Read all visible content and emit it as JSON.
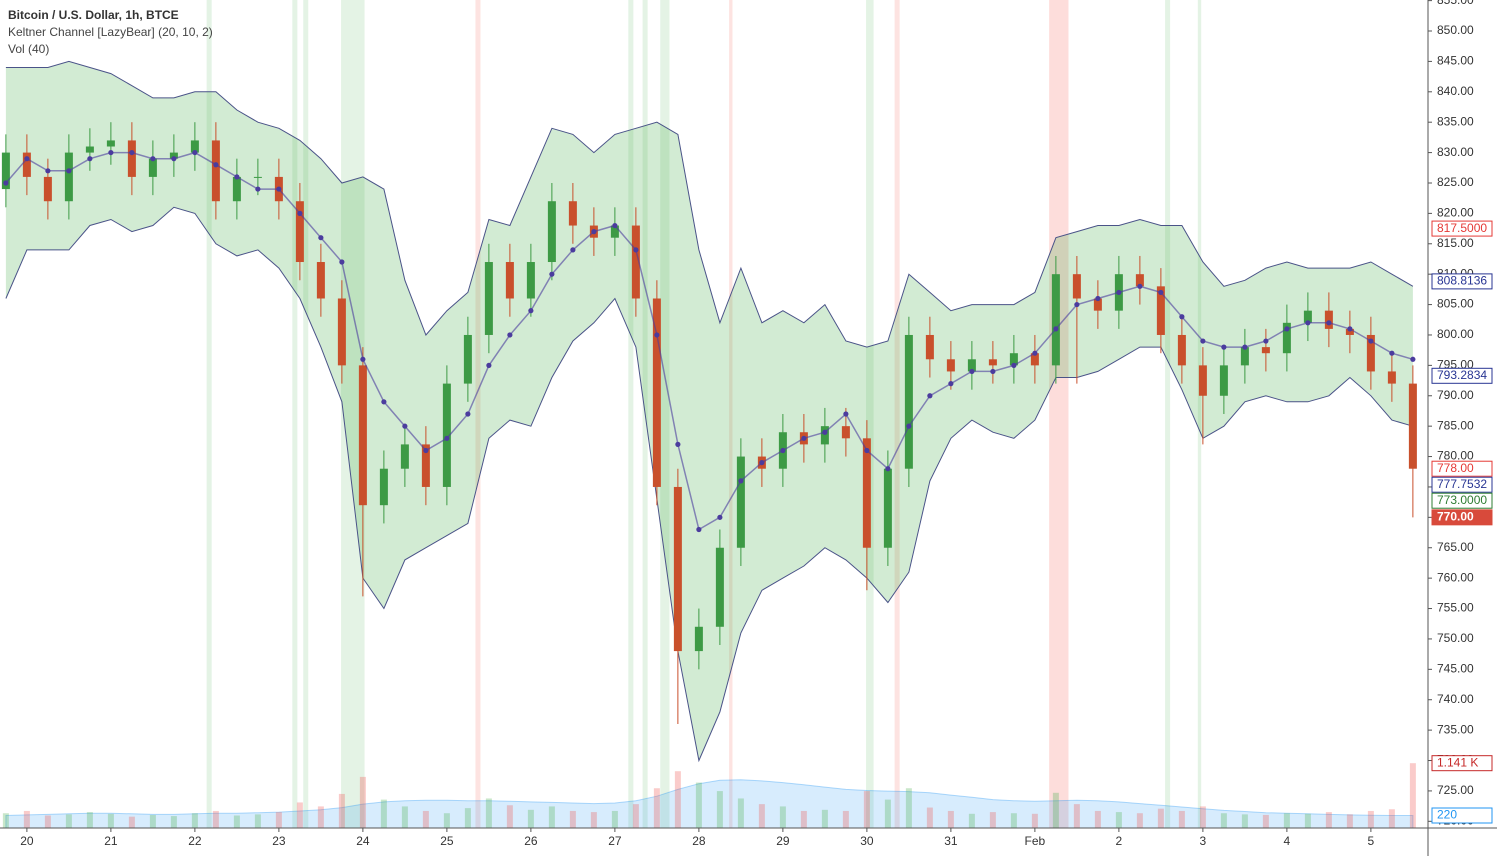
{
  "chart_data": {
    "type": "candlestick",
    "title": "Bitcoin / U.S. Dollar, 1h, BTCE",
    "indicators": [
      "Keltner Channel [LazyBear] (20, 10, 2)",
      "Vol (40)"
    ],
    "x": [
      -0.25,
      0,
      0.25,
      0.5,
      0.75,
      1,
      1.25,
      1.5,
      1.75,
      2,
      2.25,
      2.5,
      2.75,
      3,
      3.25,
      3.5,
      3.75,
      4,
      4.25,
      4.5,
      4.75,
      5,
      5.25,
      5.5,
      5.75,
      6,
      6.25,
      6.5,
      6.75,
      7,
      7.25,
      7.5,
      7.75,
      8,
      8.25,
      8.5,
      8.75,
      9,
      9.25,
      9.5,
      9.75,
      10,
      10.25,
      10.5,
      10.75,
      11,
      11.25,
      11.5,
      11.75,
      12,
      12.25,
      12.5,
      12.75,
      13,
      13.25,
      13.5,
      13.75,
      14,
      14.25,
      14.5,
      14.75,
      15,
      15.25,
      15.5,
      15.75,
      16,
      16.25,
      16.5
    ],
    "xlim": [
      -0.32,
      16.68
    ],
    "xticks": [
      {
        "value": 0,
        "label": "20"
      },
      {
        "value": 1,
        "label": "21"
      },
      {
        "value": 2,
        "label": "22"
      },
      {
        "value": 3,
        "label": "23"
      },
      {
        "value": 4,
        "label": "24"
      },
      {
        "value": 5,
        "label": "25"
      },
      {
        "value": 6,
        "label": "26"
      },
      {
        "value": 7,
        "label": "27"
      },
      {
        "value": 8,
        "label": "28"
      },
      {
        "value": 9,
        "label": "29"
      },
      {
        "value": 10,
        "label": "30"
      },
      {
        "value": 11,
        "label": "31"
      },
      {
        "value": 12,
        "label": "Feb"
      },
      {
        "value": 13,
        "label": "2"
      },
      {
        "value": 14,
        "label": "3"
      },
      {
        "value": 15,
        "label": "4"
      },
      {
        "value": 16,
        "label": "5"
      }
    ],
    "ylim": [
      718.9,
      855.1
    ],
    "yticks": [
      {
        "value": 720,
        "label": "720.00"
      },
      {
        "value": 725,
        "label": "725.00"
      },
      {
        "value": 730,
        "label": "730.00"
      },
      {
        "value": 735,
        "label": "735.00"
      },
      {
        "value": 740,
        "label": "740.00"
      },
      {
        "value": 745,
        "label": "745.00"
      },
      {
        "value": 750,
        "label": "750.00"
      },
      {
        "value": 755,
        "label": "755.00"
      },
      {
        "value": 760,
        "label": "760.00"
      },
      {
        "value": 765,
        "label": "765.00"
      },
      {
        "value": 770,
        "label": "770.00"
      },
      {
        "value": 775,
        "label": "775.00"
      },
      {
        "value": 780,
        "label": "780.00"
      },
      {
        "value": 785,
        "label": "785.00"
      },
      {
        "value": 790,
        "label": "790.00"
      },
      {
        "value": 795,
        "label": "795.00"
      },
      {
        "value": 800,
        "label": "800.00"
      },
      {
        "value": 805,
        "label": "805.00"
      },
      {
        "value": 810,
        "label": "810.00"
      },
      {
        "value": 815,
        "label": "815.00"
      },
      {
        "value": 820,
        "label": "820.00"
      },
      {
        "value": 825,
        "label": "825.00"
      },
      {
        "value": 830,
        "label": "830.00"
      },
      {
        "value": 835,
        "label": "835.00"
      },
      {
        "value": 840,
        "label": "840.00"
      },
      {
        "value": 845,
        "label": "845.00"
      },
      {
        "value": 850,
        "label": "850.00"
      },
      {
        "value": 855,
        "label": "855.00"
      }
    ],
    "grid": false,
    "up_color": "#3d9a45",
    "down_color": "#c9502c",
    "open": [
      824,
      830,
      826,
      822,
      830,
      831,
      832,
      826,
      829,
      830,
      832,
      822,
      826,
      826,
      822,
      812,
      806,
      795,
      772,
      778,
      782,
      775,
      792,
      800,
      812,
      806,
      812,
      822,
      818,
      816,
      818,
      806,
      775,
      748,
      752,
      765,
      780,
      778,
      784,
      782,
      785,
      783,
      765,
      778,
      800,
      796,
      794,
      796,
      795,
      797,
      795,
      810,
      806,
      804,
      810,
      808,
      800,
      795,
      790,
      795,
      798,
      797,
      802,
      804,
      801,
      800,
      794,
      792
    ],
    "high": [
      833,
      833,
      829,
      833,
      834,
      835,
      835,
      832,
      833,
      835,
      835,
      829,
      829,
      829,
      825,
      815,
      809,
      798,
      781,
      785,
      785,
      795,
      803,
      815,
      815,
      815,
      825,
      825,
      821,
      821,
      821,
      809,
      778,
      755,
      768,
      783,
      783,
      787,
      787,
      788,
      788,
      786,
      781,
      803,
      803,
      799,
      799,
      799,
      800,
      800,
      813,
      813,
      809,
      813,
      813,
      811,
      803,
      798,
      798,
      801,
      801,
      805,
      807,
      807,
      804,
      803,
      797,
      795
    ],
    "low": [
      821,
      823,
      819,
      819,
      827,
      828,
      823,
      823,
      826,
      827,
      819,
      819,
      823,
      819,
      809,
      803,
      792,
      757,
      769,
      775,
      772,
      772,
      789,
      797,
      803,
      803,
      809,
      815,
      813,
      813,
      803,
      772,
      736,
      745,
      749,
      762,
      775,
      775,
      779,
      779,
      780,
      758,
      762,
      775,
      793,
      791,
      791,
      792,
      792,
      792,
      792,
      792,
      801,
      801,
      805,
      797,
      792,
      782,
      787,
      792,
      794,
      794,
      799,
      798,
      797,
      791,
      789,
      770
    ],
    "close": [
      830,
      826,
      822,
      830,
      831,
      832,
      826,
      829,
      830,
      832,
      822,
      826,
      826,
      822,
      812,
      806,
      795,
      772,
      778,
      782,
      775,
      792,
      800,
      812,
      806,
      812,
      822,
      818,
      816,
      818,
      806,
      775,
      748,
      752,
      765,
      780,
      778,
      784,
      782,
      785,
      783,
      765,
      778,
      800,
      796,
      794,
      796,
      795,
      797,
      795,
      810,
      806,
      804,
      810,
      808,
      800,
      795,
      790,
      795,
      798,
      797,
      802,
      804,
      801,
      800,
      794,
      792,
      778
    ],
    "channel": {
      "fill": "rgba(76,175,80,0.25)",
      "band_color": "#4a5388",
      "middle_color": "#4b3c9e",
      "upper": [
        844,
        844,
        844,
        845,
        844,
        843,
        841,
        839,
        839,
        840,
        840,
        837,
        835,
        834,
        832,
        829,
        825,
        826,
        824,
        809,
        800,
        804,
        807,
        819,
        818,
        826,
        834,
        833,
        830,
        833,
        834,
        835,
        833,
        814,
        802,
        811,
        802,
        804,
        802,
        805,
        799,
        798,
        799,
        810,
        807,
        804,
        805,
        805,
        805,
        807,
        816,
        817,
        818,
        818,
        819,
        818,
        818,
        812,
        808,
        809,
        811,
        812,
        811,
        811,
        811,
        812,
        810,
        808
      ],
      "middle": [
        825,
        829,
        827,
        827,
        829,
        830,
        830,
        829,
        829,
        830,
        828,
        826,
        824,
        824,
        820,
        816,
        812,
        796,
        789,
        785,
        781,
        783,
        787,
        795,
        800,
        804,
        810,
        814,
        817,
        818,
        814,
        800,
        782,
        768,
        770,
        776,
        779,
        781,
        783,
        784,
        787,
        781,
        778,
        785,
        790,
        792,
        794,
        794,
        795,
        797,
        801,
        805,
        806,
        807,
        808,
        807,
        803,
        799,
        798,
        798,
        799,
        801,
        802,
        802,
        801,
        799,
        797,
        796
      ],
      "lower": [
        806,
        814,
        814,
        814,
        818,
        819,
        817,
        818,
        821,
        820,
        815,
        813,
        814,
        811,
        806,
        798,
        789,
        760,
        755,
        763,
        765,
        767,
        769,
        783,
        786,
        785,
        793,
        799,
        802,
        806,
        798,
        773,
        748,
        730,
        738,
        751,
        758,
        760,
        762,
        765,
        763,
        760,
        756,
        761,
        776,
        783,
        786,
        784,
        783,
        786,
        793,
        793,
        794,
        796,
        798,
        798,
        791,
        783,
        785,
        789,
        790,
        789,
        789,
        790,
        793,
        790,
        786,
        785
      ]
    },
    "volume": [
      260,
      300,
      220,
      240,
      280,
      250,
      200,
      230,
      210,
      260,
      300,
      220,
      240,
      280,
      450,
      380,
      600,
      900,
      500,
      380,
      300,
      260,
      350,
      520,
      400,
      320,
      380,
      300,
      280,
      300,
      420,
      700,
      1000,
      800,
      650,
      520,
      420,
      380,
      300,
      320,
      300,
      650,
      500,
      700,
      360,
      300,
      250,
      280,
      260,
      250,
      620,
      420,
      300,
      280,
      260,
      340,
      300,
      380,
      260,
      240,
      230,
      260,
      250,
      280,
      240,
      300,
      330,
      1141
    ],
    "volume_ma": [
      220,
      230,
      240,
      250,
      260,
      260,
      250,
      240,
      240,
      250,
      260,
      260,
      270,
      280,
      300,
      320,
      360,
      420,
      460,
      480,
      490,
      490,
      480,
      480,
      470,
      460,
      450,
      440,
      430,
      440,
      480,
      560,
      680,
      780,
      840,
      850,
      830,
      800,
      760,
      720,
      680,
      660,
      650,
      640,
      620,
      580,
      540,
      500,
      480,
      470,
      480,
      490,
      480,
      460,
      430,
      400,
      370,
      340,
      310,
      290,
      270,
      260,
      250,
      240,
      230,
      225,
      220,
      220
    ],
    "volume_lim": [
      0,
      1250
    ],
    "signals": [
      {
        "range": [
          2.14,
          2.2
        ],
        "color": "rgba(76,175,80,0.15)"
      },
      {
        "range": [
          3.16,
          3.22
        ],
        "color": "rgba(76,175,80,0.15)"
      },
      {
        "range": [
          3.29,
          3.35
        ],
        "color": "rgba(76,175,80,0.15)"
      },
      {
        "range": [
          3.74,
          4.02
        ],
        "color": "rgba(76,175,80,0.15)"
      },
      {
        "range": [
          7.16,
          7.22
        ],
        "color": "rgba(76,175,80,0.15)"
      },
      {
        "range": [
          7.33,
          7.39
        ],
        "color": "rgba(76,175,80,0.15)"
      },
      {
        "range": [
          7.54,
          7.65
        ],
        "color": "rgba(76,175,80,0.15)"
      },
      {
        "range": [
          9.99,
          10.08
        ],
        "color": "rgba(76,175,80,0.15)"
      },
      {
        "range": [
          13.55,
          13.61
        ],
        "color": "rgba(76,175,80,0.15)"
      },
      {
        "range": [
          13.94,
          13.98
        ],
        "color": "rgba(76,175,80,0.15)"
      },
      {
        "range": [
          5.34,
          5.4
        ],
        "color": "rgba(244,67,54,0.15)"
      },
      {
        "range": [
          8.36,
          8.4
        ],
        "color": "rgba(244,67,54,0.15)"
      },
      {
        "range": [
          10.33,
          10.39
        ],
        "color": "rgba(244,67,54,0.15)"
      },
      {
        "range": [
          12.17,
          12.4
        ],
        "color": "rgba(244,67,54,0.18)"
      }
    ],
    "price_labels": [
      {
        "value": 817.5,
        "label": "817.5000",
        "color": "#e53935",
        "filled": false
      },
      {
        "value": 808.8136,
        "label": "808.8136",
        "color": "#283593",
        "filled": false
      },
      {
        "value": 793.2834,
        "label": "793.2834",
        "color": "#283593",
        "filled": false
      },
      {
        "value": 778,
        "label": "778.00",
        "color": "#e53935",
        "filled": false
      },
      {
        "value": 777.7532,
        "label": "777.7532",
        "color": "#283593",
        "filled": false
      },
      {
        "value": 773,
        "label": "773.0000",
        "color": "#2e7d32",
        "filled": false
      },
      {
        "value": 770,
        "label": "770.00",
        "color": "#d84a3b",
        "filled": true
      }
    ],
    "volume_labels": [
      {
        "value": 1141,
        "label": "1.141 K",
        "color": "#c62828",
        "filled": false
      },
      {
        "value": 220,
        "label": "220",
        "color": "#2196f3",
        "filled": false
      }
    ]
  }
}
